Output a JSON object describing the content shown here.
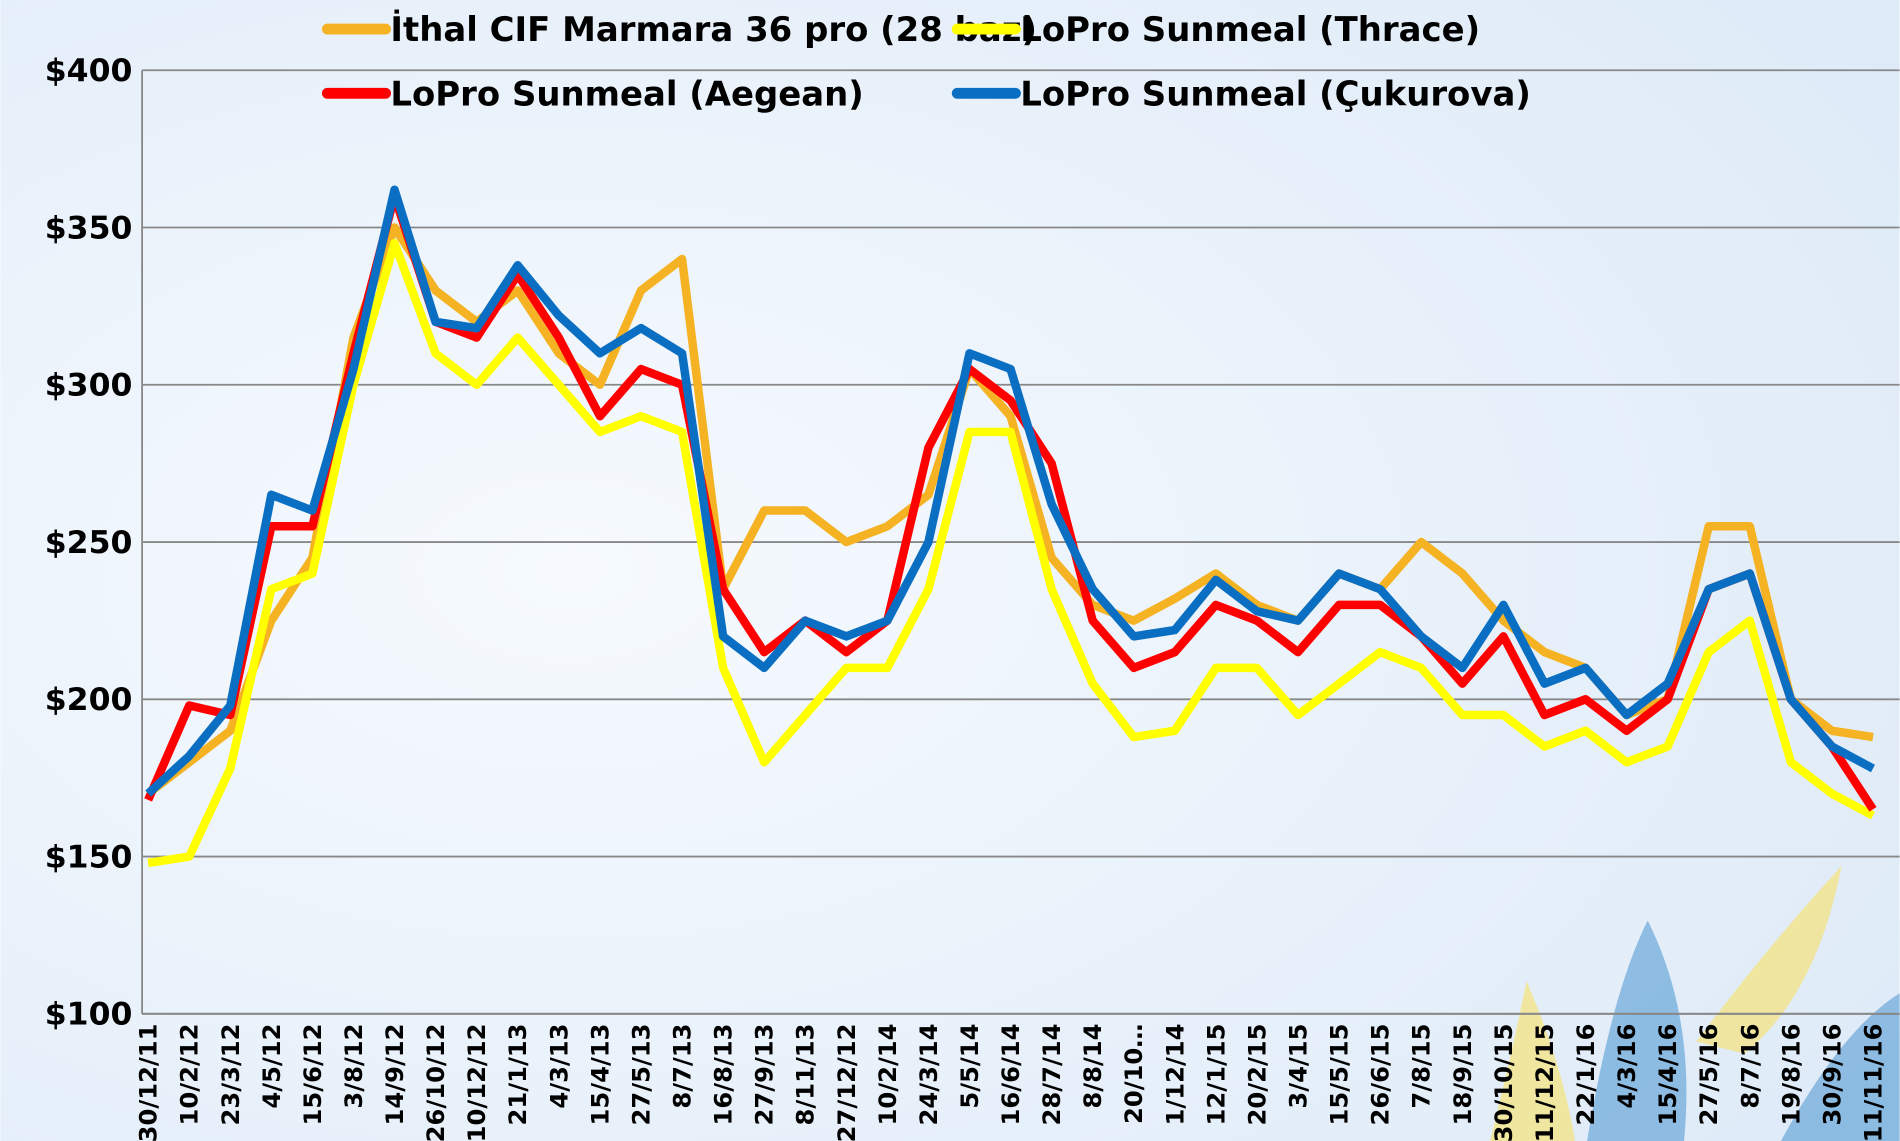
{
  "chart_data": {
    "type": "line",
    "categories": [
      "30/12/11",
      "10/2/12",
      "23/3/12",
      "4/5/12",
      "15/6/12",
      "3/8/12",
      "14/9/12",
      "26/10/12",
      "10/12/12",
      "21/1/13",
      "4/3/13",
      "15/4/13",
      "27/5/13",
      "8/7/13",
      "16/8/13",
      "27/9/13",
      "8/11/13",
      "27/12/12",
      "10/2/14",
      "24/3/14",
      "5/5/14",
      "16/6/14",
      "28/7/14",
      "8/8/14",
      "20/10…",
      "1/12/14",
      "12/1/15",
      "20/2/15",
      "3/4/15",
      "15/5/15",
      "26/6/15",
      "7/8/15",
      "18/9/15",
      "30/10/15",
      "11/12/15",
      "22/1/16",
      "4/3/16",
      "15/4/16",
      "27/5/16",
      "8/7/16",
      "19/8/16",
      "30/9/16",
      "11/11/16"
    ],
    "series": [
      {
        "name": "İthal CIF Marmara 36 pro (28 baz)",
        "color": "#f5b324",
        "values": [
          170,
          180,
          190,
          225,
          245,
          315,
          350,
          330,
          320,
          330,
          310,
          300,
          330,
          340,
          235,
          260,
          260,
          250,
          255,
          265,
          305,
          290,
          245,
          230,
          225,
          232,
          240,
          230,
          225,
          240,
          235,
          250,
          240,
          225,
          215,
          210,
          195,
          200,
          255,
          255,
          200,
          190,
          188
        ]
      },
      {
        "name": "LoPro Sunmeal (Thrace)",
        "color": "#ffff00",
        "values": [
          148,
          150,
          178,
          235,
          240,
          300,
          345,
          310,
          300,
          315,
          300,
          285,
          290,
          285,
          210,
          180,
          195,
          210,
          210,
          235,
          285,
          285,
          235,
          205,
          188,
          190,
          210,
          210,
          195,
          205,
          215,
          210,
          195,
          195,
          185,
          190,
          180,
          185,
          215,
          225,
          180,
          170,
          163
        ]
      },
      {
        "name": "LoPro Sunmeal (Aegean)",
        "color": "#ff0000",
        "values": [
          168,
          198,
          195,
          255,
          255,
          310,
          360,
          320,
          315,
          335,
          315,
          290,
          305,
          300,
          235,
          215,
          225,
          215,
          225,
          280,
          305,
          295,
          275,
          225,
          210,
          215,
          230,
          225,
          215,
          230,
          230,
          220,
          205,
          220,
          195,
          200,
          190,
          200,
          235,
          240,
          200,
          185,
          165
        ]
      },
      {
        "name": "LoPro Sunmeal (Çukurova)",
        "color": "#0a6fc2",
        "values": [
          170,
          182,
          198,
          265,
          260,
          305,
          362,
          320,
          318,
          338,
          322,
          310,
          318,
          310,
          220,
          210,
          225,
          220,
          225,
          250,
          310,
          305,
          262,
          235,
          220,
          222,
          238,
          228,
          225,
          240,
          235,
          220,
          210,
          230,
          205,
          210,
          195,
          205,
          235,
          240,
          200,
          185,
          178
        ]
      }
    ],
    "ylim": [
      100,
      400
    ],
    "yticks": [
      {
        "value": 100,
        "label": "$100"
      },
      {
        "value": 150,
        "label": "$150"
      },
      {
        "value": 200,
        "label": "$200"
      },
      {
        "value": 250,
        "label": "$250"
      },
      {
        "value": 300,
        "label": "$300"
      },
      {
        "value": 350,
        "label": "$350"
      },
      {
        "value": 400,
        "label": "$400"
      }
    ],
    "grid": true
  }
}
